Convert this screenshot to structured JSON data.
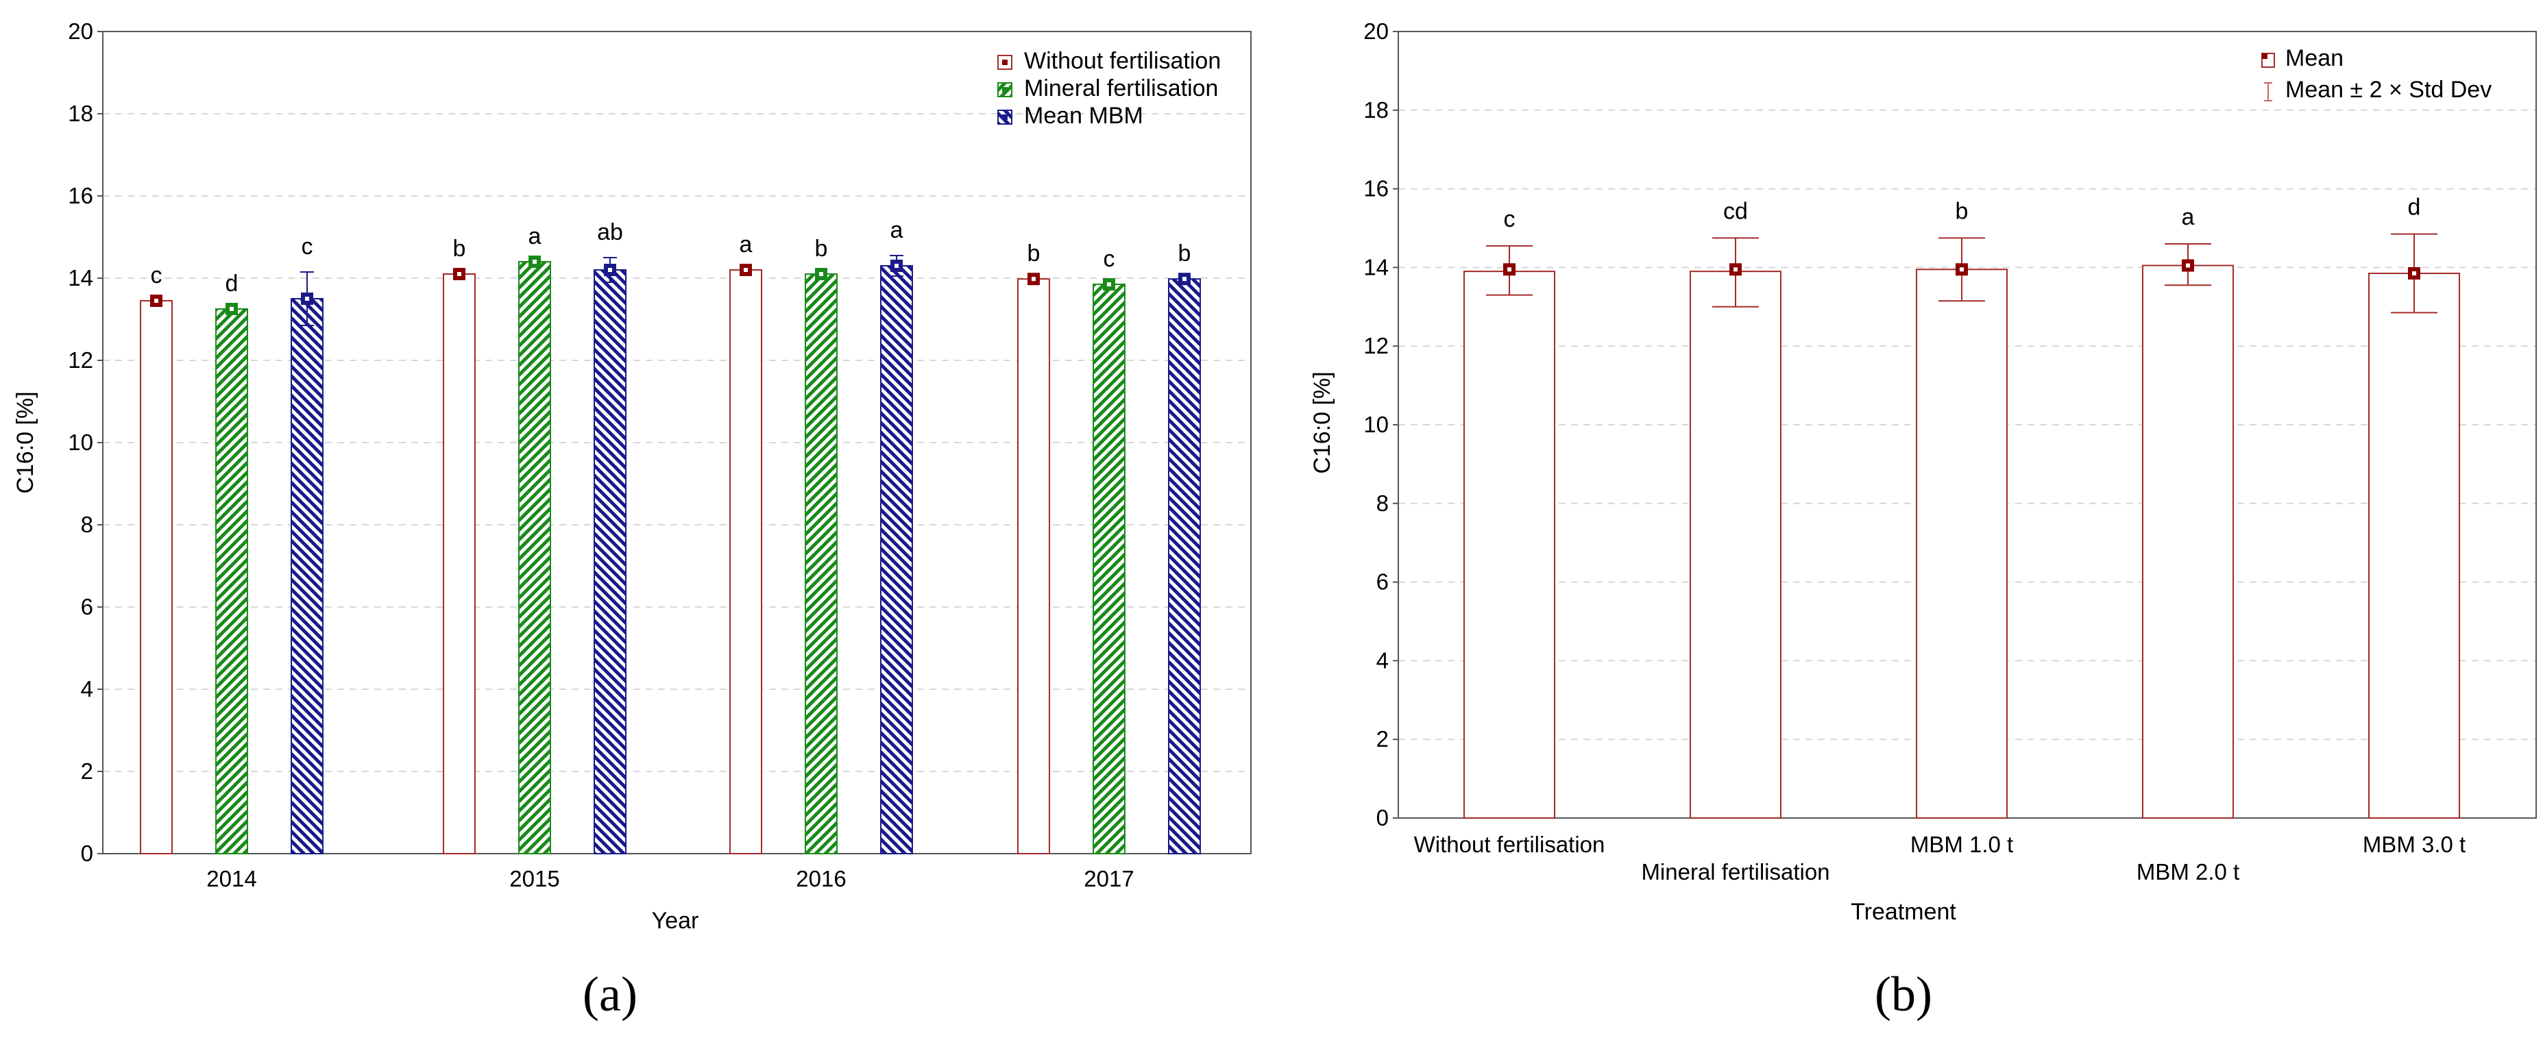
{
  "colors": {
    "without": "#a52a2a",
    "mineral": "#1a8a1a",
    "mbm": "#1a1a8a",
    "mean_marker": "#8b0000",
    "grid": "#d8d8d8",
    "axis": "#555555"
  },
  "chart_data": [
    {
      "id": "a",
      "panel_label": "(a)",
      "type": "bar",
      "xlabel": "Year",
      "ylabel": "C16:0 [%]",
      "ylim": [
        0,
        20
      ],
      "yticks": [
        0,
        2,
        4,
        6,
        8,
        10,
        12,
        14,
        16,
        18,
        20
      ],
      "categories": [
        "2014",
        "2015",
        "2016",
        "2017"
      ],
      "legend_position": "top-right",
      "series": [
        {
          "name": "Without fertilisation",
          "key": "without",
          "pattern": "none",
          "values": [
            13.45,
            14.1,
            14.2,
            13.98
          ],
          "errors": [
            0.0,
            0.0,
            0.0,
            0.0
          ],
          "letters": [
            "c",
            "b",
            "a",
            "b"
          ]
        },
        {
          "name": "Mineral fertilisation",
          "key": "mineral",
          "pattern": "hatch",
          "values": [
            13.25,
            14.4,
            14.1,
            13.85
          ],
          "errors": [
            0.0,
            0.0,
            0.0,
            0.0
          ],
          "letters": [
            "d",
            "a",
            "b",
            "c"
          ]
        },
        {
          "name": "Mean MBM",
          "key": "mbm",
          "pattern": "hatch",
          "values": [
            13.5,
            14.2,
            14.3,
            13.98
          ],
          "errors": [
            0.65,
            0.3,
            0.25,
            0.0
          ],
          "letters": [
            "c",
            "ab",
            "a",
            "b"
          ]
        }
      ]
    },
    {
      "id": "b",
      "panel_label": "(b)",
      "type": "bar",
      "xlabel": "Treatment",
      "ylabel": "C16:0 [%]",
      "ylim": [
        0,
        20
      ],
      "yticks": [
        0,
        2,
        4,
        6,
        8,
        10,
        12,
        14,
        16,
        18,
        20
      ],
      "categories": [
        "Without fertilisation",
        "Mineral fertilisation",
        "MBM 1.0 t",
        "MBM 2.0 t",
        "MBM 3.0 t"
      ],
      "legend_position": "top-right",
      "legend": [
        "Mean",
        "Mean ± 2 × Std Dev"
      ],
      "values": [
        13.95,
        13.95,
        13.95,
        14.05,
        13.85
      ],
      "bar_tops": [
        13.9,
        13.9,
        13.95,
        14.05,
        13.85
      ],
      "err_low": [
        13.3,
        13.0,
        13.15,
        13.55,
        12.85
      ],
      "err_high": [
        14.55,
        14.75,
        14.75,
        14.6,
        14.85
      ],
      "letters": [
        "c",
        "cd",
        "b",
        "a",
        "d"
      ]
    }
  ]
}
